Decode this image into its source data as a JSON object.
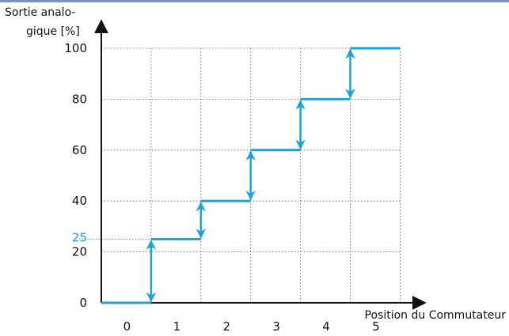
{
  "chart_data": {
    "type": "line",
    "ylabel_line1": "Sortie analo-",
    "ylabel_line2": "gique [%]",
    "xlabel": "Position du Commutateur",
    "x_tick_labels": [
      "0",
      "1",
      "2",
      "3",
      "4",
      "5"
    ],
    "y_ticks": [
      0,
      20,
      40,
      60,
      80,
      100
    ],
    "highlight_tick": {
      "value": 25,
      "label": "25",
      "color": "#1aa3dc"
    },
    "ylim": [
      0,
      100
    ],
    "grid": "dotted",
    "series": [
      {
        "color": "#1aa3dc",
        "step_x": [
          -0.5,
          0.5,
          1.5,
          2.5,
          3.5,
          4.5,
          5.5
        ],
        "levels": [
          0,
          25,
          40,
          60,
          80,
          100
        ],
        "transitions": [
          {
            "x": 0.5,
            "from": 0,
            "to": 25
          },
          {
            "x": 1.5,
            "from": 25,
            "to": 40
          },
          {
            "x": 2.5,
            "from": 40,
            "to": 60
          },
          {
            "x": 3.5,
            "from": 60,
            "to": 80
          },
          {
            "x": 4.5,
            "from": 80,
            "to": 100
          }
        ]
      }
    ]
  }
}
